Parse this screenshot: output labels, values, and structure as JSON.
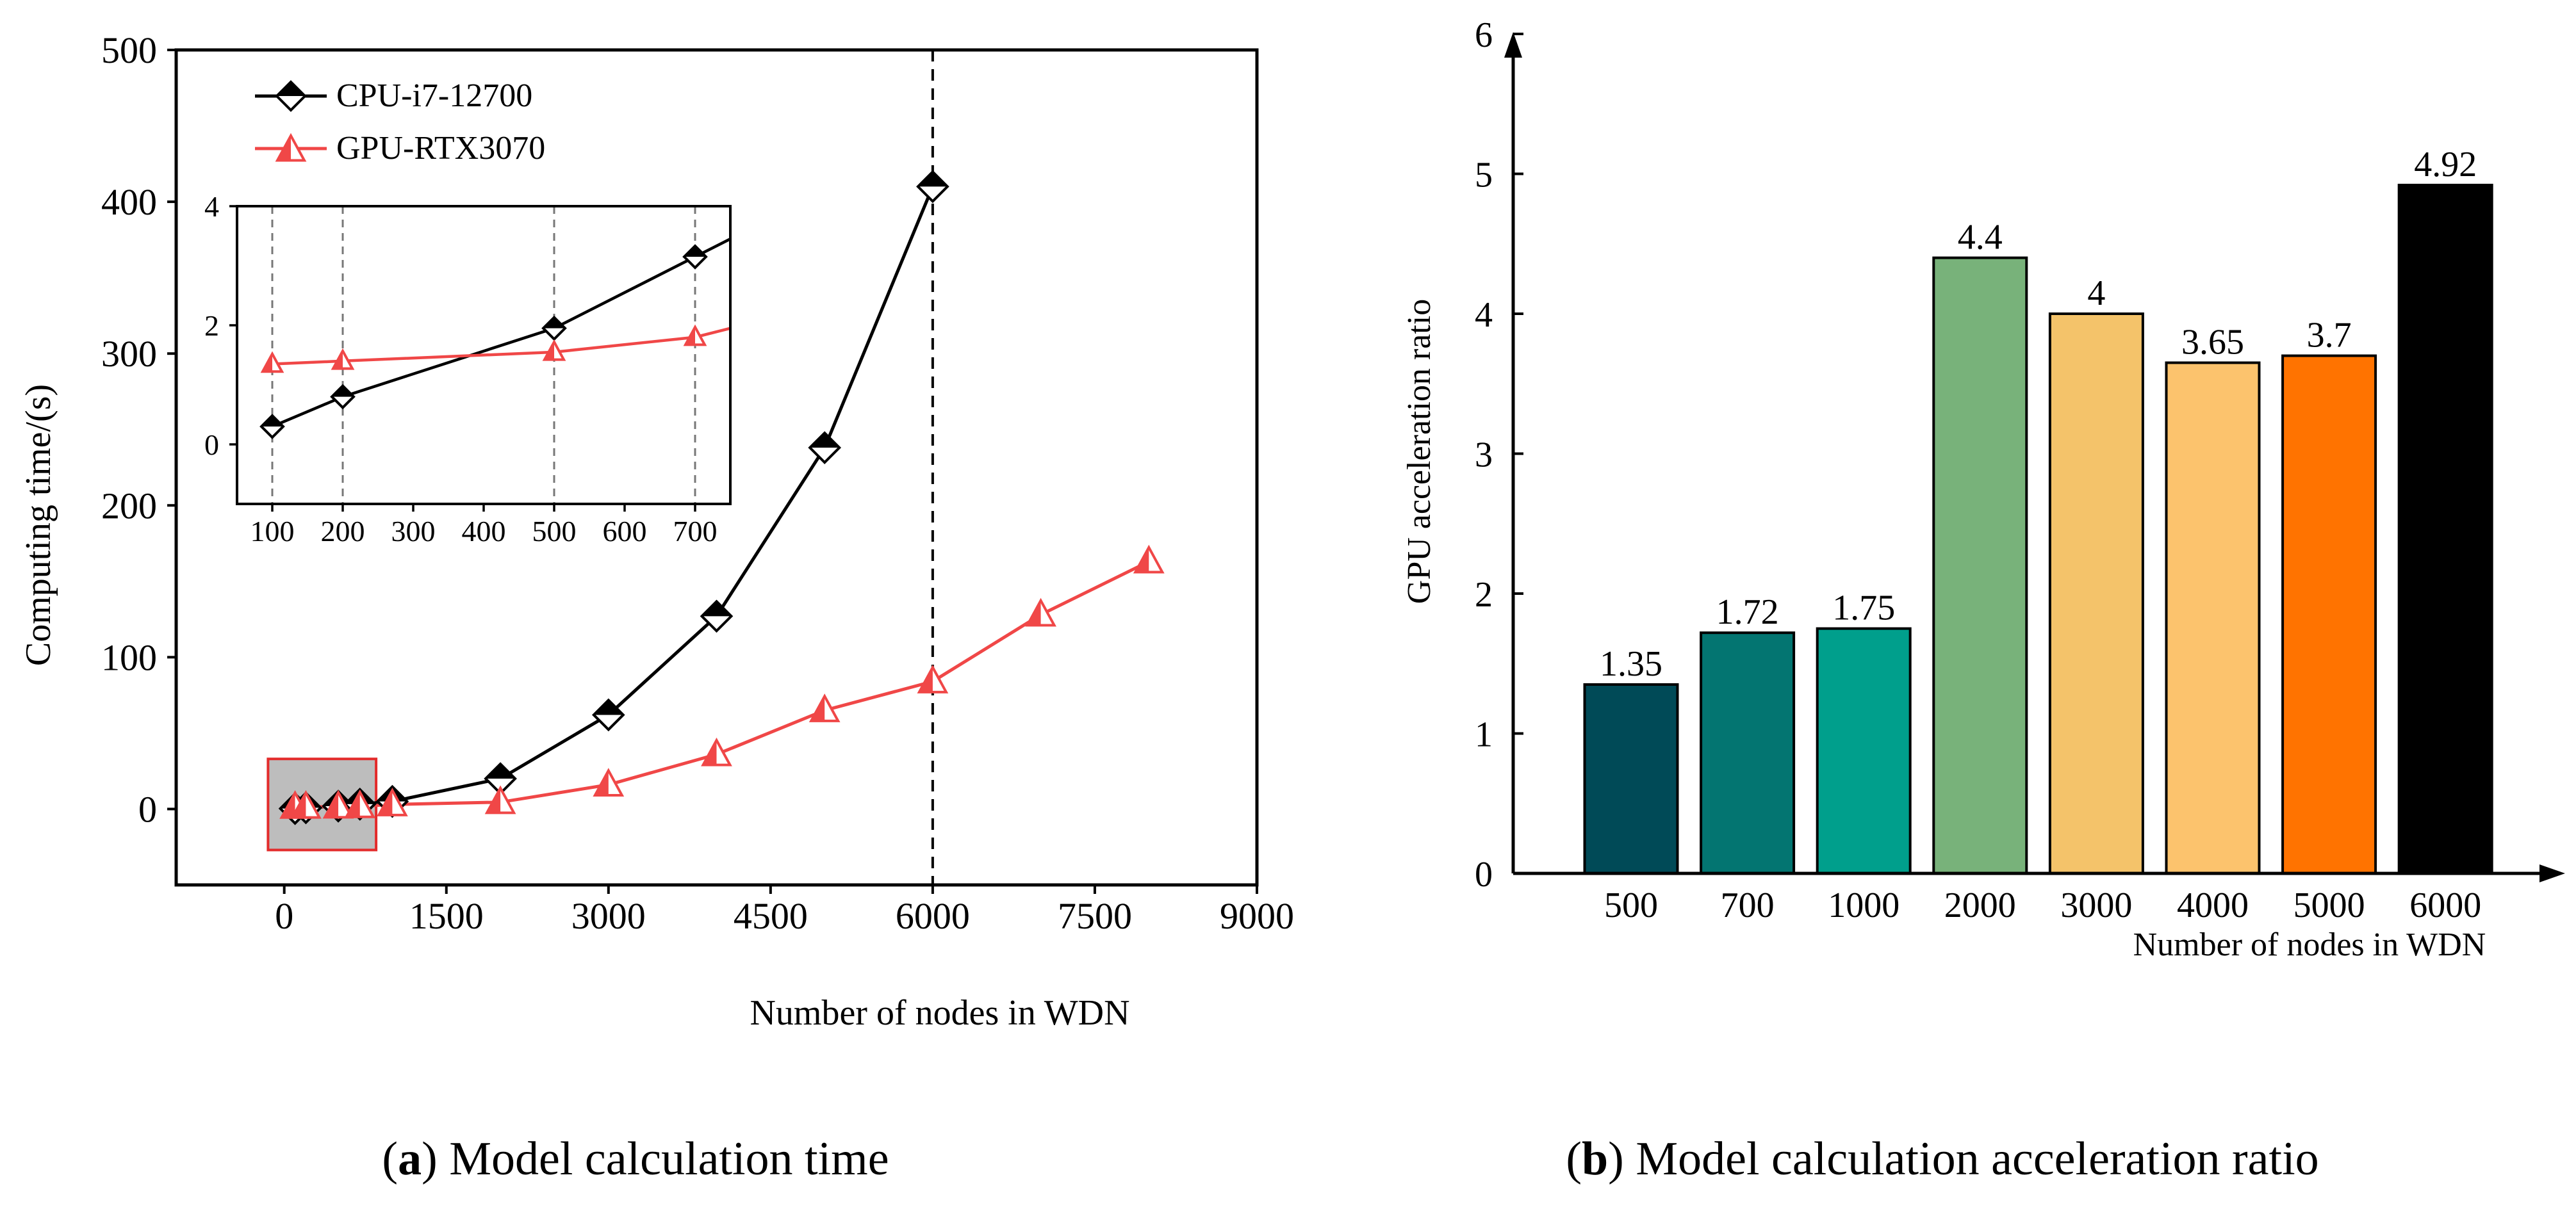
{
  "chart_data": [
    {
      "type": "line",
      "caption_letter": "a",
      "caption_rest": ") Model calculation time",
      "caption_open": "(",
      "xlabel": "Number of nodes in WDN",
      "ylabel": "Computing time/(s)",
      "xlim": [
        -1000,
        9000
      ],
      "ylim": [
        -50,
        500
      ],
      "xticks": [
        "0",
        "1500",
        "3000",
        "4500",
        "6000",
        "7500",
        "9000"
      ],
      "xtick_values": [
        0,
        1500,
        3000,
        4500,
        6000,
        7500,
        9000
      ],
      "yticks": [
        "0",
        "100",
        "200",
        "300",
        "400",
        "500"
      ],
      "ytick_values": [
        0,
        100,
        200,
        300,
        400,
        500
      ],
      "reference_line_x": 6000,
      "highlight_box": {
        "x_range": [
          -150,
          850
        ],
        "y_range": [
          -27,
          33
        ]
      },
      "series": [
        {
          "name": "CPU-i7-12700",
          "color": "#000000",
          "marker": "diamond",
          "x": [
            100,
            200,
            500,
            700,
            1000,
            2000,
            3000,
            4000,
            5000,
            6000
          ],
          "values": [
            0.3,
            0.8,
            1.9,
            3.2,
            5,
            20,
            62,
            127,
            238,
            410
          ]
        },
        {
          "name": "GPU-RTX3070",
          "color": "#f04747",
          "marker": "triangle",
          "x": [
            100,
            200,
            500,
            700,
            1000,
            2000,
            3000,
            4000,
            5000,
            6000,
            7000,
            8000
          ],
          "values": [
            1.35,
            1.4,
            1.55,
            1.8,
            3,
            4.5,
            16,
            36,
            65,
            84,
            128,
            163
          ]
        }
      ],
      "inset": {
        "xlim": [
          50,
          750
        ],
        "ylim": [
          -1,
          4
        ],
        "xticks": [
          "100",
          "200",
          "300",
          "400",
          "500",
          "600",
          "700"
        ],
        "xtick_values": [
          100,
          200,
          300,
          400,
          500,
          600,
          700
        ],
        "yticks": [
          "0",
          "2",
          "4"
        ],
        "ytick_values": [
          0,
          2,
          4
        ],
        "reference_lines_x": [
          100,
          200,
          500,
          700
        ],
        "series": [
          {
            "name": "CPU-i7-12700",
            "x": [
              100,
              200,
              500,
              700,
              750
            ],
            "values": [
              0.3,
              0.8,
              1.95,
              3.15,
              3.45
            ],
            "marker_count": 4
          },
          {
            "name": "GPU-RTX3070",
            "x": [
              100,
              200,
              500,
              700,
              750
            ],
            "values": [
              1.35,
              1.4,
              1.55,
              1.8,
              1.95
            ],
            "marker_count": 4
          }
        ]
      }
    },
    {
      "type": "bar",
      "caption_letter": "b",
      "caption_rest": ") Model calculation acceleration ratio",
      "caption_open": "(",
      "xlabel": "Number of nodes in WDN",
      "ylabel": "GPU acceleration ratio",
      "ylim": [
        0,
        6
      ],
      "yticks": [
        "0",
        "1",
        "2",
        "3",
        "4",
        "5",
        "6"
      ],
      "ytick_values": [
        0,
        1,
        2,
        3,
        4,
        5,
        6
      ],
      "categories": [
        "500",
        "700",
        "1000",
        "2000",
        "3000",
        "4000",
        "5000",
        "6000"
      ],
      "values": [
        1.35,
        1.72,
        1.75,
        4.4,
        4,
        3.65,
        3.7,
        4.92
      ],
      "value_labels": [
        "1.35",
        "1.72",
        "1.75",
        "4.4",
        "4",
        "3.65",
        "3.7",
        "4.92"
      ],
      "colors": [
        "#004a57",
        "#037571",
        "#009f8c",
        "#78b27a",
        "#f4c36a",
        "#fcc36d",
        "#ff7300",
        "#000000"
      ]
    }
  ]
}
